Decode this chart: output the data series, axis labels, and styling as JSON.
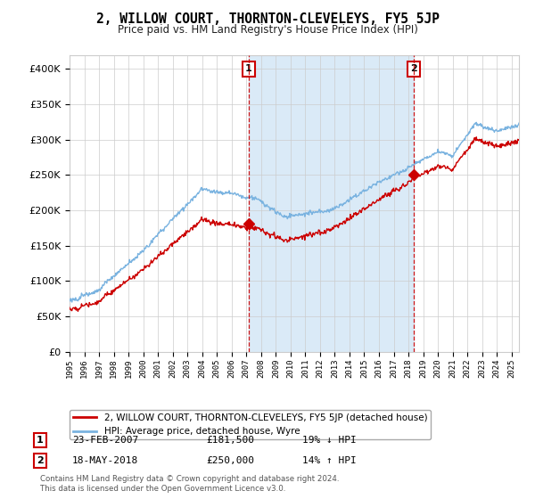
{
  "title": "2, WILLOW COURT, THORNTON-CLEVELEYS, FY5 5JP",
  "subtitle": "Price paid vs. HM Land Registry's House Price Index (HPI)",
  "legend_line1": "2, WILLOW COURT, THORNTON-CLEVELEYS, FY5 5JP (detached house)",
  "legend_line2": "HPI: Average price, detached house, Wyre",
  "annotation1_label": "1",
  "annotation1_date": "23-FEB-2007",
  "annotation1_price": "£181,500",
  "annotation1_hpi": "19% ↓ HPI",
  "annotation2_label": "2",
  "annotation2_date": "18-MAY-2018",
  "annotation2_price": "£250,000",
  "annotation2_hpi": "14% ↑ HPI",
  "footer": "Contains HM Land Registry data © Crown copyright and database right 2024.\nThis data is licensed under the Open Government Licence v3.0.",
  "sale1_year": 2007.15,
  "sale1_value": 181500,
  "sale2_year": 2018.38,
  "sale2_value": 250000,
  "hpi_color": "#7ab3e0",
  "price_color": "#cc0000",
  "vline_color": "#cc0000",
  "dot_color": "#cc0000",
  "shade_color": "#daeaf7",
  "ylim_min": 0,
  "ylim_max": 420000,
  "xmin": 1995,
  "xmax": 2025.5,
  "background_color": "#ffffff",
  "grid_color": "#cccccc"
}
